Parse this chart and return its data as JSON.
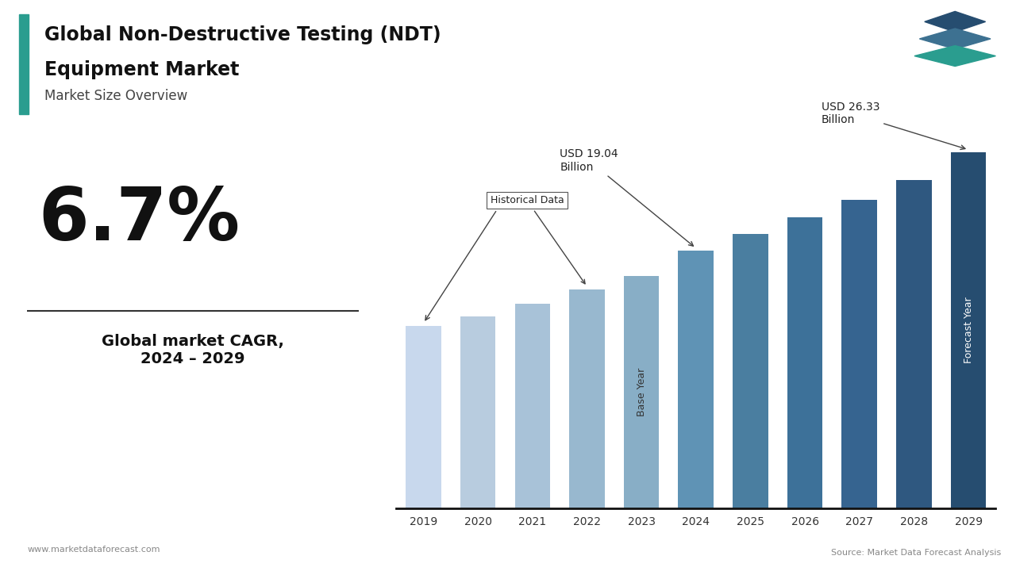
{
  "years": [
    2019,
    2020,
    2021,
    2022,
    2023,
    2024,
    2025,
    2026,
    2027,
    2028,
    2029
  ],
  "values": [
    13.5,
    14.2,
    15.1,
    16.2,
    17.2,
    19.04,
    20.3,
    21.5,
    22.8,
    24.3,
    26.33
  ],
  "bar_colors": [
    "#c8d8ed",
    "#b8ccdf",
    "#a8c2d8",
    "#98b8cf",
    "#88aec6",
    "#5f93b5",
    "#4a7ea0",
    "#3d7199",
    "#366490",
    "#2f5880",
    "#264d70"
  ],
  "historical_label": "Historical Data",
  "base_year_label": "Base Year",
  "forecast_year_label": "Forecast Year",
  "annotation_2024_text": "USD 19.04\nBillion",
  "annotation_2029_text": "USD 26.33\nBillion",
  "title_line1": "Global Non-Destructive Testing (NDT)",
  "title_line2": "Equipment Market",
  "subtitle": "Market Size Overview",
  "cagr_value": "6.7%",
  "cagr_label": "Global market CAGR,\n2024 – 2029",
  "footer_left": "www.marketdataforecast.com",
  "footer_right": "Source: Market Data Forecast Analysis",
  "accent_color": "#2a9d8f",
  "bg_color": "#ffffff",
  "title_bar_color": "#2a9d8f",
  "ylim": [
    0,
    30
  ],
  "base_year_bar": 2023,
  "forecast_year_bar": 2029,
  "logo_colors": [
    "#264d70",
    "#3d7191",
    "#2a9d8f"
  ]
}
